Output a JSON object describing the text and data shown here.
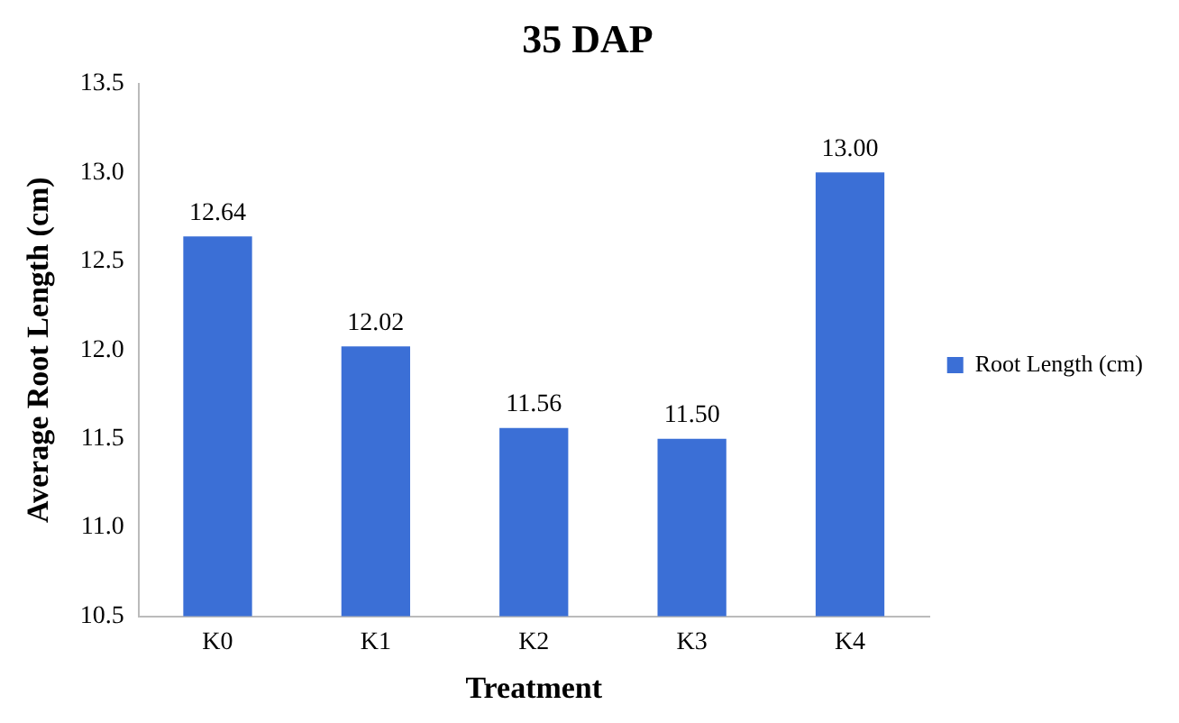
{
  "chart_data": {
    "type": "bar",
    "title": "35 DAP",
    "xlabel": "Treatment",
    "ylabel": "Average Root Length (cm)",
    "categories": [
      "K0",
      "K1",
      "K2",
      "K3",
      "K4"
    ],
    "series": [
      {
        "name": "Root Length (cm)",
        "color": "#3b6fd6",
        "values": [
          12.64,
          12.02,
          11.56,
          11.5,
          13.0
        ]
      }
    ],
    "value_labels": [
      "12.64",
      "12.02",
      "11.56",
      "11.50",
      "13.00"
    ],
    "ylim": [
      10.5,
      13.5
    ],
    "yticks": [
      "10.5",
      {
        "value": 11,
        "label": "11.0"
      },
      "11.5",
      {
        "value": 12,
        "label": "12.0"
      },
      "12.5",
      {
        "value": 13,
        "label": "13.0"
      },
      "13.5"
    ],
    "grid": false,
    "legend": "right"
  }
}
